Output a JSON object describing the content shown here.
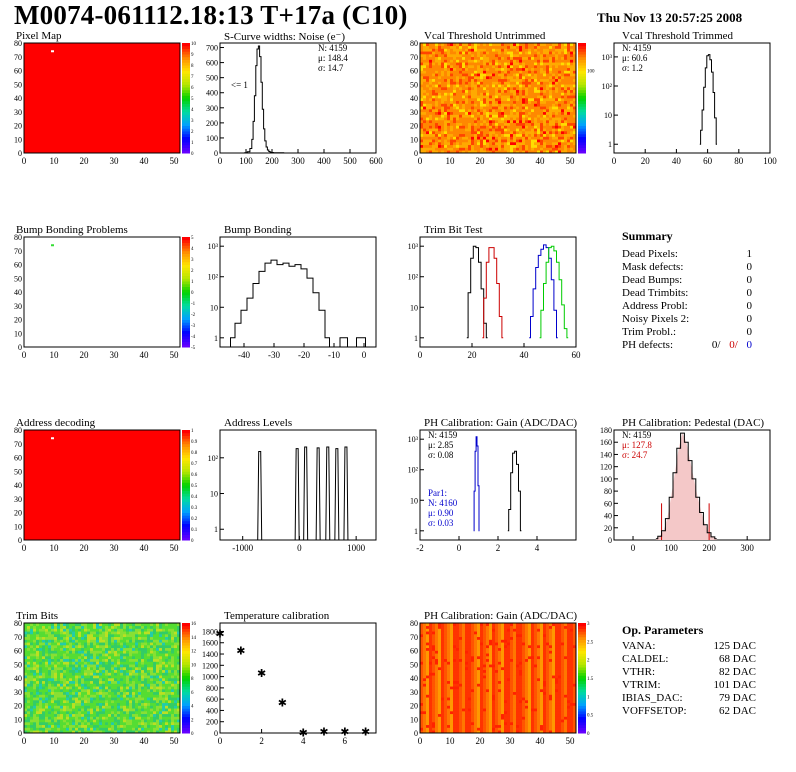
{
  "header": {
    "title": "M0074-061112.18:13 T+17a (C10)",
    "date": "Thu Nov 13 20:57:25 2008"
  },
  "chart_data": [
    {
      "id": "pixel-map",
      "type": "heatmap",
      "title": "Pixel Map",
      "xticks": [
        "0",
        "10",
        "20",
        "30",
        "40",
        "50"
      ],
      "yticks": [
        "0",
        "10",
        "20",
        "30",
        "40",
        "50",
        "60",
        "70",
        "80"
      ],
      "zticks": [
        "0",
        "1",
        "2",
        "3",
        "4",
        "5",
        "6",
        "7",
        "8",
        "9",
        "10"
      ],
      "xlim": [
        0,
        52
      ],
      "ylim": [
        0,
        80
      ],
      "zlim": [
        0,
        10
      ],
      "fill": "#ff0000",
      "marks": [
        {
          "x": 9.5,
          "y": 74
        }
      ]
    },
    {
      "id": "scurve-widths",
      "type": "line",
      "title": "S-Curve widths: Noise (e⁻)",
      "stats": [
        "N: 4159",
        "μ: 148.4",
        "σ: 14.7"
      ],
      "annotation": "<= 1",
      "xticks": [
        "0",
        "100",
        "200",
        "300",
        "400",
        "500",
        "600"
      ],
      "yticks": [
        "0",
        "100",
        "200",
        "300",
        "400",
        "500",
        "600",
        "700"
      ],
      "xlim": [
        0,
        600
      ],
      "ylim": [
        0,
        730
      ],
      "x": [
        90,
        100,
        110,
        120,
        125,
        130,
        135,
        140,
        145,
        150,
        155,
        160,
        165,
        170,
        175,
        180,
        185,
        190,
        195,
        200,
        210,
        230,
        260
      ],
      "y": [
        0,
        2,
        8,
        30,
        90,
        210,
        380,
        580,
        690,
        710,
        640,
        470,
        290,
        160,
        80,
        40,
        20,
        10,
        5,
        3,
        2,
        1,
        0
      ]
    },
    {
      "id": "vcal-untrimmed",
      "type": "heatmap",
      "title": "Vcal Threshold Untrimmed",
      "xticks": [
        "0",
        "10",
        "20",
        "30",
        "40",
        "50"
      ],
      "yticks": [
        "0",
        "10",
        "20",
        "30",
        "40",
        "50",
        "60",
        "70",
        "80"
      ],
      "zticks": [
        "100"
      ],
      "xlim": [
        0,
        52
      ],
      "ylim": [
        0,
        80
      ],
      "palette": "warm"
    },
    {
      "id": "vcal-trimmed",
      "type": "line",
      "title": "Vcal Threshold Trimmed",
      "log": true,
      "stats": [
        "N: 4159",
        "μ: 60.6",
        "σ:  1.2"
      ],
      "xticks": [
        "0",
        "20",
        "40",
        "60",
        "80",
        "100"
      ],
      "yticks": [
        "1",
        "10",
        "10²",
        "10³"
      ],
      "xlim": [
        0,
        100
      ],
      "ylim": [
        0.5,
        3000
      ],
      "x": [
        55,
        56,
        57,
        58,
        59,
        60,
        61,
        62,
        63,
        64,
        65,
        66
      ],
      "y": [
        1,
        3,
        15,
        90,
        420,
        1100,
        1200,
        800,
        300,
        60,
        8,
        1
      ]
    },
    {
      "id": "bump-bonding-problems",
      "type": "heatmap",
      "title": "Bump Bonding Problems",
      "xticks": [
        "0",
        "10",
        "20",
        "30",
        "40",
        "50"
      ],
      "yticks": [
        "0",
        "10",
        "20",
        "30",
        "40",
        "50",
        "60",
        "70",
        "80"
      ],
      "zticks": [
        "-5",
        "-4",
        "-3",
        "-2",
        "-1",
        "0",
        "1",
        "2",
        "3",
        "4",
        "5"
      ],
      "xlim": [
        0,
        52
      ],
      "ylim": [
        0,
        80
      ],
      "fill": "#ffffff",
      "marks": [
        {
          "x": 9.5,
          "y": 74,
          "color": "#33dd33"
        }
      ]
    },
    {
      "id": "bump-bonding",
      "type": "line",
      "title": "Bump Bonding",
      "log": true,
      "xticks": [
        "-40",
        "-30",
        "-20",
        "-10",
        "0"
      ],
      "yticks": [
        "1",
        "10",
        "10²",
        "10³"
      ],
      "xlim": [
        -48,
        4
      ],
      "ylim": [
        0.5,
        2000
      ],
      "x": [
        -45,
        -44,
        -42,
        -40,
        -38,
        -36,
        -34,
        -32,
        -30,
        -28,
        -26,
        -24,
        -22,
        -20,
        -18,
        -16,
        -14,
        -12,
        -11,
        -10,
        -6,
        -5,
        0,
        1
      ],
      "y": [
        0.5,
        1,
        3,
        8,
        20,
        60,
        150,
        280,
        350,
        250,
        280,
        220,
        250,
        180,
        90,
        30,
        8,
        1,
        0.5,
        0.5,
        1,
        0.5,
        1,
        0.5
      ]
    },
    {
      "id": "trim-bit-test",
      "type": "line",
      "title": "Trim Bit Test",
      "log": true,
      "xticks": [
        "0",
        "20",
        "40",
        "60"
      ],
      "yticks": [
        "1",
        "10",
        "10²",
        "10³"
      ],
      "xlim": [
        0,
        60
      ],
      "ylim": [
        0.5,
        2000
      ],
      "series": [
        {
          "color": "#000000",
          "x": [
            18,
            19,
            20,
            21,
            22,
            23,
            24,
            25,
            26
          ],
          "y": [
            1,
            30,
            400,
            1000,
            900,
            300,
            40,
            3,
            1
          ]
        },
        {
          "color": "#cc0000",
          "x": [
            24,
            25,
            26,
            27,
            28,
            29,
            30,
            31,
            32
          ],
          "y": [
            1,
            20,
            300,
            900,
            900,
            400,
            60,
            5,
            1
          ]
        },
        {
          "color": "#0000cc",
          "x": [
            42,
            43,
            44,
            45,
            46,
            47,
            48,
            49,
            50,
            51,
            52,
            53
          ],
          "y": [
            1,
            5,
            40,
            200,
            500,
            800,
            1100,
            900,
            400,
            80,
            8,
            1
          ]
        },
        {
          "color": "#00cc00",
          "x": [
            46,
            47,
            48,
            49,
            50,
            51,
            52,
            53,
            54,
            55,
            56,
            57
          ],
          "y": [
            1,
            8,
            60,
            300,
            900,
            1000,
            700,
            300,
            80,
            12,
            2,
            1
          ]
        }
      ]
    },
    {
      "id": "address-decoding",
      "type": "heatmap",
      "title": "Address decoding",
      "xticks": [
        "0",
        "10",
        "20",
        "30",
        "40",
        "50"
      ],
      "yticks": [
        "0",
        "10",
        "20",
        "30",
        "40",
        "50",
        "60",
        "70",
        "80"
      ],
      "zticks": [
        "0",
        "0.1",
        "0.2",
        "0.3",
        "0.4",
        "0.5",
        "0.6",
        "0.7",
        "0.8",
        "0.9",
        "1"
      ],
      "xlim": [
        0,
        52
      ],
      "ylim": [
        0,
        80
      ],
      "fill": "#ff0000",
      "marks": [
        {
          "x": 9.5,
          "y": 74
        }
      ]
    },
    {
      "id": "address-levels",
      "type": "bar",
      "title": "Address Levels",
      "log": true,
      "xticks": [
        "-1000",
        "0",
        "1000"
      ],
      "yticks": [
        "1",
        "10",
        "10²"
      ],
      "xlim": [
        -1400,
        1350
      ],
      "ylim": [
        0.5,
        600
      ],
      "peaks": [
        {
          "x": -700,
          "y": 150
        },
        {
          "x": -40,
          "y": 180
        },
        {
          "x": 110,
          "y": 200
        },
        {
          "x": 330,
          "y": 190
        },
        {
          "x": 500,
          "y": 200
        },
        {
          "x": 660,
          "y": 180
        },
        {
          "x": 820,
          "y": 200
        }
      ]
    },
    {
      "id": "ph-gain",
      "type": "line",
      "title": "PH Calibration: Gain (ADC/DAC)",
      "log": true,
      "stats": [
        "N: 4159",
        "μ: 2.85",
        "σ: 0.08"
      ],
      "stats2": [
        "Par1:",
        "N: 4160",
        "μ: 0.90",
        "σ: 0.03"
      ],
      "xticks": [
        "-2",
        "0",
        "2",
        "4"
      ],
      "yticks": [
        "1",
        "10",
        "10²",
        "10³"
      ],
      "xlim": [
        -2,
        6
      ],
      "ylim": [
        0.5,
        2000
      ],
      "series": [
        {
          "color": "#000000",
          "x": [
            2.5,
            2.6,
            2.7,
            2.8,
            2.9,
            3.0,
            3.1,
            3.2
          ],
          "y": [
            1,
            5,
            80,
            350,
            400,
            150,
            20,
            1
          ]
        },
        {
          "color": "#0000cc",
          "x": [
            0.75,
            0.8,
            0.85,
            0.9,
            0.95,
            1.0,
            1.05
          ],
          "y": [
            1,
            20,
            400,
            1200,
            600,
            30,
            1
          ]
        }
      ]
    },
    {
      "id": "ph-pedestal",
      "type": "line",
      "title": "PH Calibration: Pedestal (DAC)",
      "stats": [
        "N: 4159",
        "μ: 127.8",
        "σ: 24.7"
      ],
      "xticks": [
        "0",
        "100",
        "200",
        "300"
      ],
      "yticks": [
        "0",
        "20",
        "40",
        "60",
        "80",
        "100",
        "120",
        "140",
        "160",
        "180"
      ],
      "xlim": [
        -50,
        360
      ],
      "ylim": [
        0,
        180
      ],
      "x": [
        60,
        70,
        80,
        90,
        100,
        110,
        120,
        130,
        140,
        150,
        160,
        170,
        180,
        190,
        200,
        210,
        220
      ],
      "y": [
        2,
        6,
        15,
        35,
        70,
        110,
        150,
        175,
        160,
        130,
        100,
        70,
        45,
        25,
        12,
        5,
        2
      ],
      "vlines": [
        75,
        200
      ]
    },
    {
      "id": "trim-bits",
      "type": "heatmap",
      "title": "Trim Bits",
      "xticks": [
        "0",
        "10",
        "20",
        "30",
        "40",
        "50"
      ],
      "yticks": [
        "0",
        "10",
        "20",
        "30",
        "40",
        "50",
        "60",
        "70",
        "80"
      ],
      "zticks": [
        "0",
        "2",
        "4",
        "6",
        "8",
        "10",
        "12",
        "14",
        "16"
      ],
      "xlim": [
        0,
        52
      ],
      "ylim": [
        0,
        80
      ],
      "palette": "green"
    },
    {
      "id": "temperature-calibration",
      "type": "scatter",
      "title": "Temperature calibration",
      "xticks": [
        "0",
        "2",
        "4",
        "6"
      ],
      "yticks": [
        "0",
        "200",
        "400",
        "600",
        "800",
        "1000",
        "1200",
        "1400",
        "1600",
        "1800"
      ],
      "xlim": [
        0,
        7.5
      ],
      "ylim": [
        0,
        1950
      ],
      "x": [
        0,
        1,
        2,
        3,
        4,
        5,
        6,
        7
      ],
      "y": [
        1780,
        1480,
        1080,
        560,
        30,
        40,
        45,
        40
      ]
    },
    {
      "id": "ph-gain-map",
      "type": "heatmap",
      "title": "PH Calibration: Gain (ADC/DAC)",
      "xticks": [
        "0",
        "10",
        "20",
        "30",
        "40",
        "50"
      ],
      "yticks": [
        "0",
        "10",
        "20",
        "30",
        "40",
        "50",
        "60",
        "70",
        "80"
      ],
      "zticks": [
        "0",
        "0.5",
        "1",
        "1.5",
        "2",
        "2.5",
        "3"
      ],
      "xlim": [
        0,
        52
      ],
      "ylim": [
        0,
        80
      ],
      "palette": "columns"
    }
  ],
  "summary": {
    "heading": "Summary",
    "rows": [
      {
        "label": "Dead Pixels:",
        "value": "1"
      },
      {
        "label": "Mask defects:",
        "value": "0"
      },
      {
        "label": "Dead Bumps:",
        "value": "0"
      },
      {
        "label": "Dead Trimbits:",
        "value": "0"
      },
      {
        "label": "Address Probl:",
        "value": "0"
      },
      {
        "label": "Noisy Pixels 2:",
        "value": "0"
      },
      {
        "label": "Trim Probl.:",
        "value": "0"
      }
    ],
    "ph_defects_label": "PH defects:",
    "ph_defects": [
      "0/",
      "0/",
      "0"
    ]
  },
  "ops": {
    "heading": "Op. Parameters",
    "rows": [
      {
        "label": "VANA:",
        "value": "125 DAC"
      },
      {
        "label": "CALDEL:",
        "value": "68 DAC"
      },
      {
        "label": "VTHR:",
        "value": "82 DAC"
      },
      {
        "label": "VTRIM:",
        "value": "101 DAC"
      },
      {
        "label": "IBIAS_DAC:",
        "value": "79 DAC"
      },
      {
        "label": "VOFFSETOP:",
        "value": "62 DAC"
      }
    ]
  }
}
